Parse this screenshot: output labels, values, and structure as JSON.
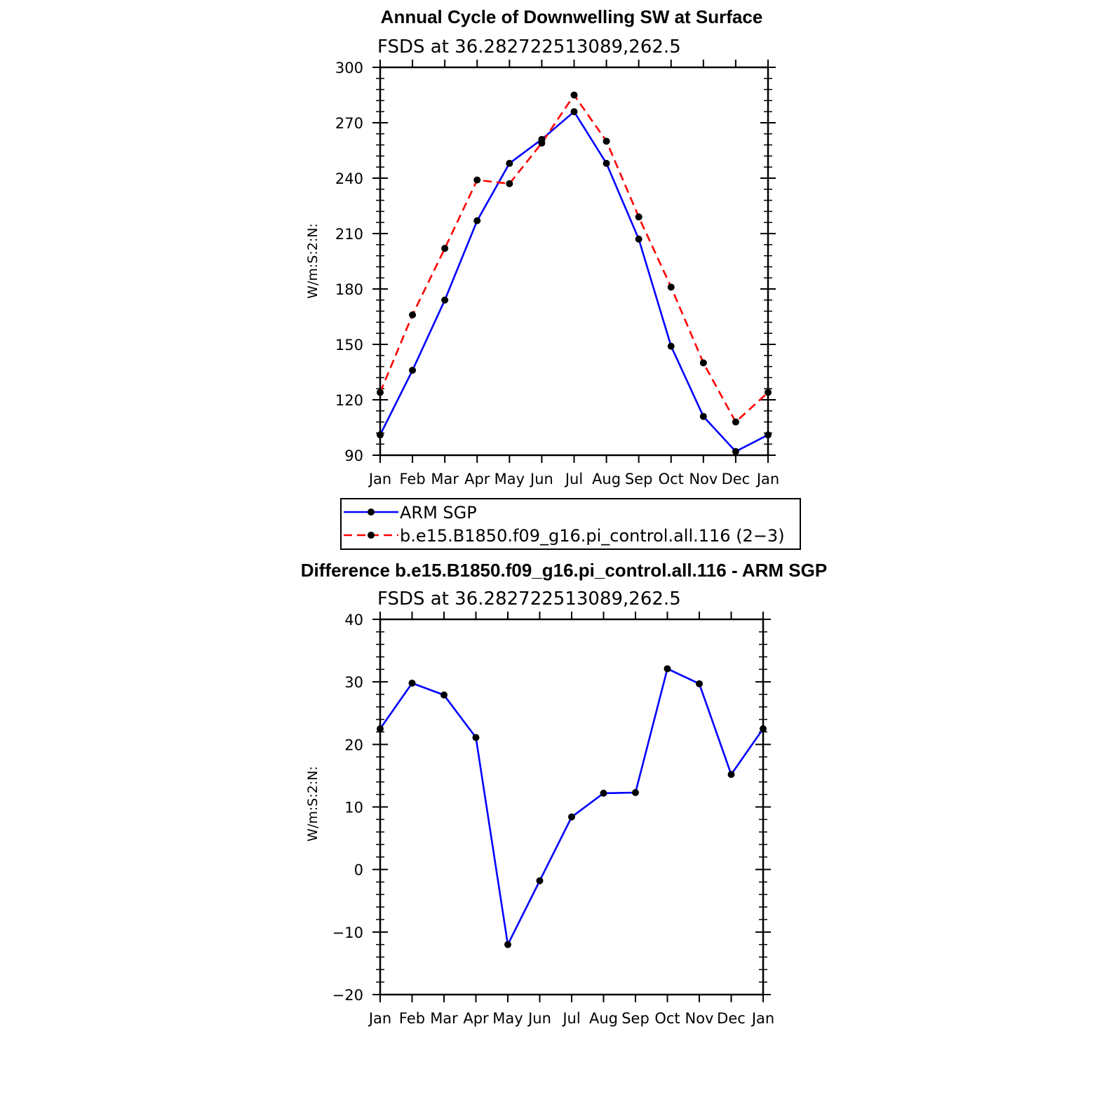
{
  "chart_data": [
    {
      "type": "line",
      "title": "Annual Cycle of Downwelling SW at Surface",
      "subtitle": "FSDS at 36.282722513089,262.5",
      "ylabel": "W/m:S:2:N:",
      "xlabel": "",
      "categories": [
        "Jan",
        "Feb",
        "Mar",
        "Apr",
        "May",
        "Jun",
        "Jul",
        "Aug",
        "Sep",
        "Oct",
        "Nov",
        "Dec",
        "Jan"
      ],
      "ylim": [
        90,
        300
      ],
      "yticks": [
        "90",
        "120",
        "150",
        "180",
        "210",
        "240",
        "270",
        "300"
      ],
      "legend_position": "below",
      "series": [
        {
          "name": "ARM SGP",
          "color": "#0000ff",
          "dash": "solid",
          "values": [
            101,
            136,
            174,
            217,
            248,
            261,
            276,
            248,
            207,
            149,
            111,
            92,
            101
          ]
        },
        {
          "name": "b.e15.B1850.f09_g16.pi_control.all.116 (2−3)",
          "color": "#ff0000",
          "dash": "dashed",
          "values": [
            124,
            166,
            202,
            239,
            237,
            259,
            285,
            260,
            219,
            181,
            140,
            108,
            124
          ]
        }
      ]
    },
    {
      "type": "line",
      "title": "Difference b.e15.B1850.f09_g16.pi_control.all.116 - ARM SGP",
      "subtitle": "FSDS at 36.282722513089,262.5",
      "ylabel": "W/m:S:2:N:",
      "xlabel": "",
      "categories": [
        "Jan",
        "Feb",
        "Mar",
        "Apr",
        "May",
        "Jun",
        "Jul",
        "Aug",
        "Sep",
        "Oct",
        "Nov",
        "Dec",
        "Jan"
      ],
      "ylim": [
        -20,
        40
      ],
      "yticks": [
        "−20",
        "−10",
        "0",
        "10",
        "20",
        "30",
        "40"
      ],
      "series": [
        {
          "name": "Difference",
          "color": "#0000ff",
          "dash": "solid",
          "values": [
            22.5,
            29.8,
            27.9,
            21.1,
            -12.0,
            -1.8,
            8.4,
            12.2,
            12.3,
            32.1,
            29.7,
            15.2,
            22.5
          ]
        }
      ]
    }
  ]
}
